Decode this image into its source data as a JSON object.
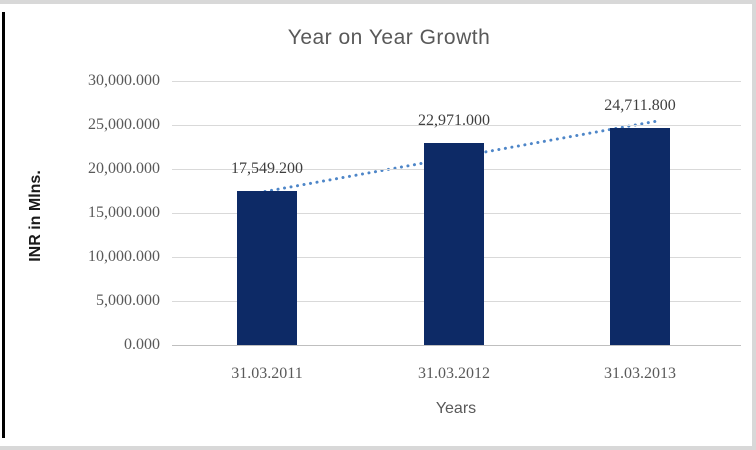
{
  "chart_data": {
    "type": "bar",
    "title": "Year on Year Growth",
    "xlabel": "Years",
    "ylabel": "INR in Mlns.",
    "categories": [
      "31.03.2011",
      "31.03.2012",
      "31.03.2013"
    ],
    "values": [
      17549.2,
      22971.0,
      24711.8
    ],
    "data_labels": [
      "17,549.200",
      "22,971.000",
      "24,711.800"
    ],
    "ylim": [
      0,
      30000
    ],
    "ytick_step": 5000,
    "ytick_labels": [
      "0.000",
      "5,000.000",
      "10,000.000",
      "15,000.000",
      "20,000.000",
      "25,000.000",
      "30,000.000"
    ],
    "grid": true,
    "legend": "none",
    "trendline": {
      "type": "linear",
      "style": "dotted"
    }
  },
  "colors": {
    "bar": "#0d2a66",
    "trendline": "#4e86c8",
    "gridline": "#d9d9d9",
    "axis_line": "#bfbfbf",
    "title_text": "#595959",
    "tick_text": "#595959",
    "data_label_text": "#3f3f3f",
    "y_title_text": "#1a1a1a",
    "frame_border": "#d8d8d8",
    "left_edge": "#000000"
  }
}
